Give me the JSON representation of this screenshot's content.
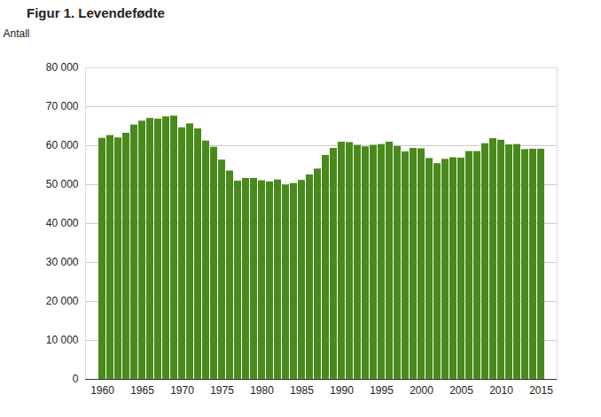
{
  "chart_data": {
    "type": "bar",
    "title": "Figur 1. Levendefødte",
    "y_label": "Antall",
    "categories": [
      "1960",
      null,
      null,
      null,
      null,
      "1965",
      null,
      null,
      null,
      null,
      "1970",
      null,
      null,
      null,
      null,
      "1975",
      null,
      null,
      null,
      null,
      "1980",
      null,
      null,
      null,
      null,
      "1985",
      null,
      null,
      null,
      null,
      "1990",
      null,
      null,
      null,
      null,
      "1995",
      null,
      null,
      null,
      null,
      "2000",
      null,
      null,
      null,
      null,
      "2005",
      null,
      null,
      null,
      null,
      "2010",
      null,
      null,
      null,
      null,
      "2015"
    ],
    "values": [
      61900,
      62600,
      62000,
      63200,
      65300,
      66300,
      67000,
      66800,
      67400,
      67600,
      64600,
      65600,
      64300,
      61200,
      59600,
      56300,
      53500,
      50900,
      51600,
      51600,
      51000,
      50700,
      51200,
      49900,
      50300,
      51100,
      52500,
      54000,
      57500,
      59300,
      60900,
      60800,
      60100,
      59700,
      60100,
      60300,
      60900,
      59800,
      58400,
      59300,
      59200,
      56700,
      55400,
      56500,
      56900,
      56800,
      58500,
      58500,
      60500,
      61800,
      61400,
      60200,
      60300,
      59000,
      59100,
      59100
    ],
    "color": "#4a8a1c",
    "ylim": [
      0,
      80000
    ],
    "yticks": [
      0,
      {
        "value": 10000,
        "label": "10 000"
      },
      {
        "value": 20000,
        "label": "20 000"
      },
      {
        "value": 30000,
        "label": "30 000"
      },
      {
        "value": 40000,
        "label": "40 000"
      },
      {
        "value": 50000,
        "label": "50 000"
      },
      {
        "value": 60000,
        "label": "60 000"
      },
      {
        "value": 70000,
        "label": "70 000"
      },
      {
        "value": 80000,
        "label": "80 000"
      }
    ],
    "grid": true
  }
}
